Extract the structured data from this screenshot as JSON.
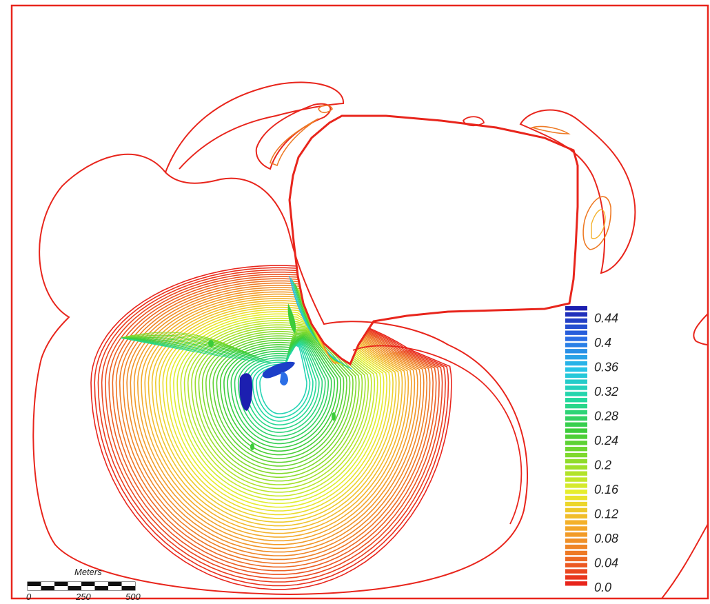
{
  "map": {
    "boundary_color": "#e8251c",
    "contour_count": 48
  },
  "legend": {
    "labels": [
      "0.44",
      "0.4",
      "0.36",
      "0.32",
      "0.28",
      "0.24",
      "0.2",
      "0.16",
      "0.12",
      "0.08",
      "0.04",
      "0.0"
    ],
    "min": 0.0,
    "max": 0.46,
    "colors": [
      "#1c1fb0",
      "#2b6ee6",
      "#27c4e8",
      "#23d99e",
      "#3ccc3a",
      "#8fdc2a",
      "#e6ee2c",
      "#f4b12a",
      "#ee7a25",
      "#e8251c"
    ]
  },
  "scale_bar": {
    "title": "Meters",
    "ticks": [
      "0",
      "250",
      "500"
    ]
  }
}
